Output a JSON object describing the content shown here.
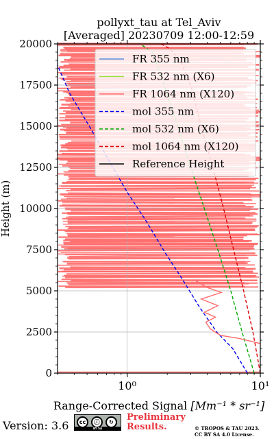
{
  "title_line1": "pollyxt_tau at Tel_Aviv",
  "title_line2": "[Averaged] 20230709 12:00-12:59",
  "footer": {
    "version": "Version: 3.6",
    "badge_cc": "cc",
    "badge_by": "BY",
    "badge_sa": "SA",
    "preliminary_line1": "Preliminary",
    "preliminary_line2": "Results.",
    "copyright_line1": "© TROPOS & TAU 2023.",
    "copyright_line2": "CC BY SA 4.0 License."
  },
  "colors": {
    "fr355": "#5a8fd6",
    "fr532": "#9ade48",
    "fr1064": "#ff6a6a",
    "mol355": "#0000ee",
    "mol532": "#00aa00",
    "mol1064": "#dd0000",
    "reference": "#000000",
    "grid": "#b0b0b0"
  },
  "chart_data": {
    "type": "line",
    "xlabel_text": "Range-Corrected Signal ",
    "xlabel_math": "[Mm⁻¹ * sr⁻¹]",
    "ylabel": "Height (m)",
    "x_scale": "log",
    "xlim": [
      0.3,
      10
    ],
    "ylim": [
      0,
      20000
    ],
    "y_ticks": [
      0,
      2500,
      5000,
      7500,
      10000,
      12500,
      15000,
      17500,
      20000
    ],
    "y_tick_labels": [
      "0",
      "2500",
      "5000",
      "7500",
      "10000",
      "12500",
      "15000",
      "17500",
      "20000"
    ],
    "x_ticks": [
      1,
      10
    ],
    "x_tick_labels": [
      "10⁰",
      "10¹"
    ],
    "grid": true,
    "legend_position": "top-right",
    "legend": [
      "FR 355 nm",
      "FR 532 nm (X6)",
      "FR 1064 nm (X120)",
      "mol 355 nm",
      "mol 532 nm (X6)",
      "mol 1064 nm (X120)",
      "Reference Height"
    ],
    "series": [
      {
        "name": "mol 355 nm",
        "style": "dashed",
        "x": [
          8.0,
          6.2,
          4.7,
          3.5,
          2.6,
          1.9,
          1.4,
          1.0,
          0.72,
          0.52,
          0.37,
          0.3
        ],
        "y": [
          0,
          1500,
          2500,
          4000,
          5700,
          7400,
          9200,
          11000,
          13000,
          15000,
          17000,
          18700
        ]
      },
      {
        "name": "mol 532 nm (X6)",
        "style": "dashed",
        "x": [
          9.0,
          7.3,
          6.0,
          4.8,
          3.8,
          3.0,
          2.4,
          1.9,
          1.55,
          1.25
        ],
        "y": [
          0,
          2500,
          5000,
          7500,
          10000,
          12500,
          15000,
          17500,
          19500,
          20000
        ]
      },
      {
        "name": "mol 1064 nm (X120)",
        "style": "dashed",
        "x": [
          10.0,
          8.8,
          7.5,
          6.3,
          5.3,
          4.4,
          3.6,
          3.0,
          2.5,
          2.1,
          1.8
        ],
        "y": [
          0,
          2500,
          5000,
          7500,
          10000,
          12500,
          15000,
          17500,
          19000,
          19700,
          20000
        ]
      },
      {
        "name": "FR 1064 nm (X120) low-level profile",
        "style": "solid",
        "x": [
          10.0,
          7.0,
          5.0,
          4.2,
          3.9,
          4.6,
          3.8,
          4.8,
          3.6,
          5.1,
          4.0,
          3.3
        ],
        "y": [
          1800,
          2100,
          2300,
          2700,
          3100,
          3400,
          3700,
          4100,
          4500,
          4900,
          5200,
          5600
        ]
      }
    ]
  }
}
